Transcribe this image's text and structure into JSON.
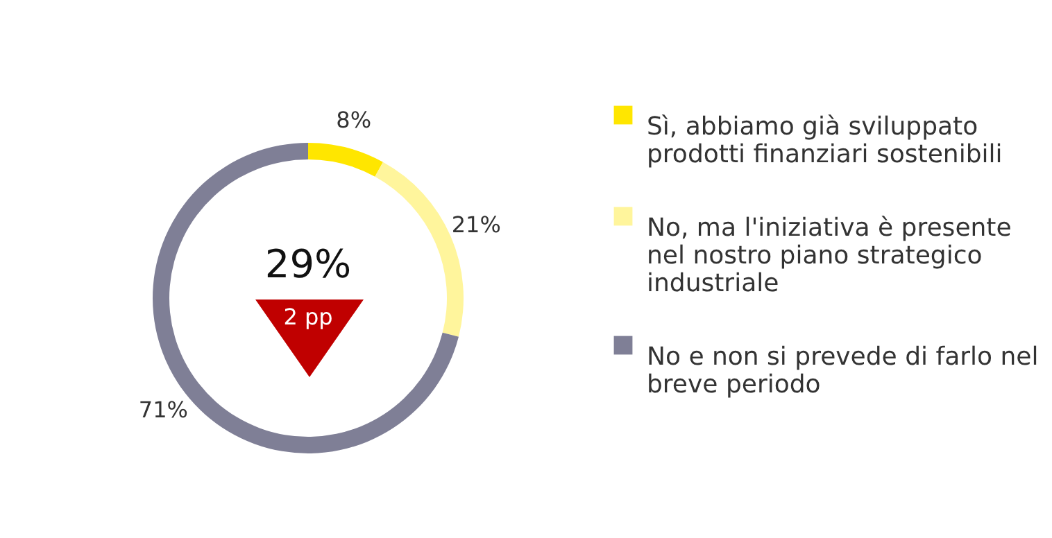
{
  "chart_data": {
    "type": "donut",
    "categories": [
      "Sì, abbiamo già sviluppato prodotti finanziari sostenibili",
      "No, ma l'iniziativa è presente nel nostro piano strategico industriale",
      "No e non si prevede di farlo nel breve periodo"
    ],
    "values": [
      8,
      21,
      71
    ],
    "colors": [
      "#ffe600",
      "#fff59c",
      "#7f7f96"
    ],
    "value_labels": [
      "8%",
      "21%",
      "71%"
    ],
    "annotations": [
      "29%",
      "2 pp"
    ],
    "legend": "right"
  }
}
